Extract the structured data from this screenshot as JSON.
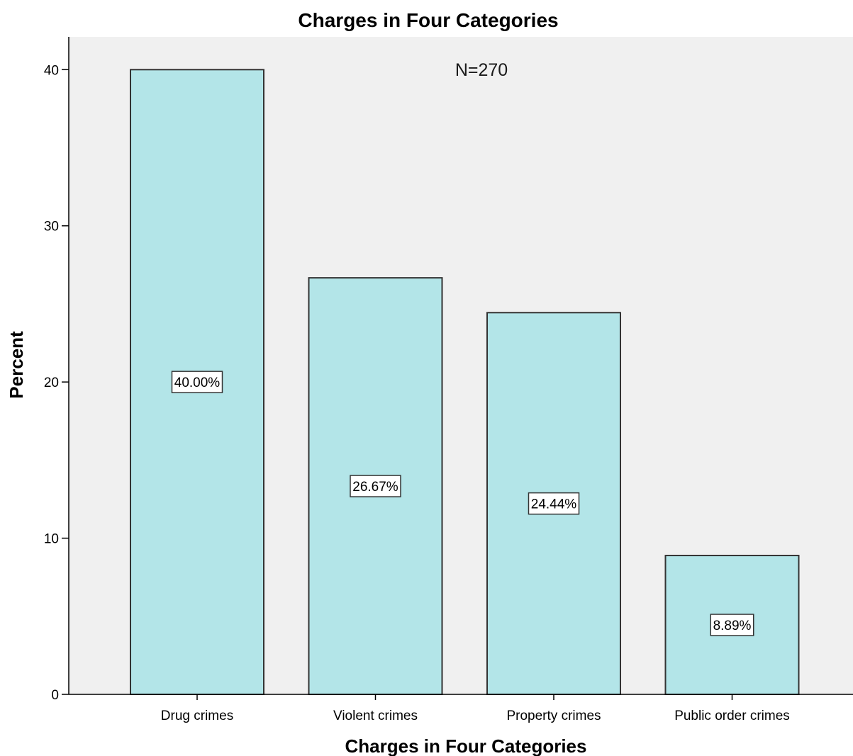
{
  "chart_data": {
    "type": "bar",
    "title": "Charges in Four Categories",
    "xlabel": "Charges in Four Categories",
    "ylabel": "Percent",
    "annotation": "N=270",
    "categories": [
      "Drug crimes",
      "Violent crimes",
      "Property crimes",
      "Public order crimes"
    ],
    "values": [
      40.0,
      26.67,
      24.44,
      8.89
    ],
    "data_labels": [
      "40.00%",
      "26.67%",
      "24.44%",
      "8.89%"
    ],
    "y_ticks": [
      0,
      10,
      20,
      30,
      40
    ],
    "ylim": [
      0,
      42.1
    ],
    "grid": false,
    "legend": "none",
    "colors": {
      "bar_fill": "#b3e5e8",
      "bar_stroke": "#333333",
      "plot_background": "#f0f0f0",
      "axis": "#000000"
    }
  }
}
